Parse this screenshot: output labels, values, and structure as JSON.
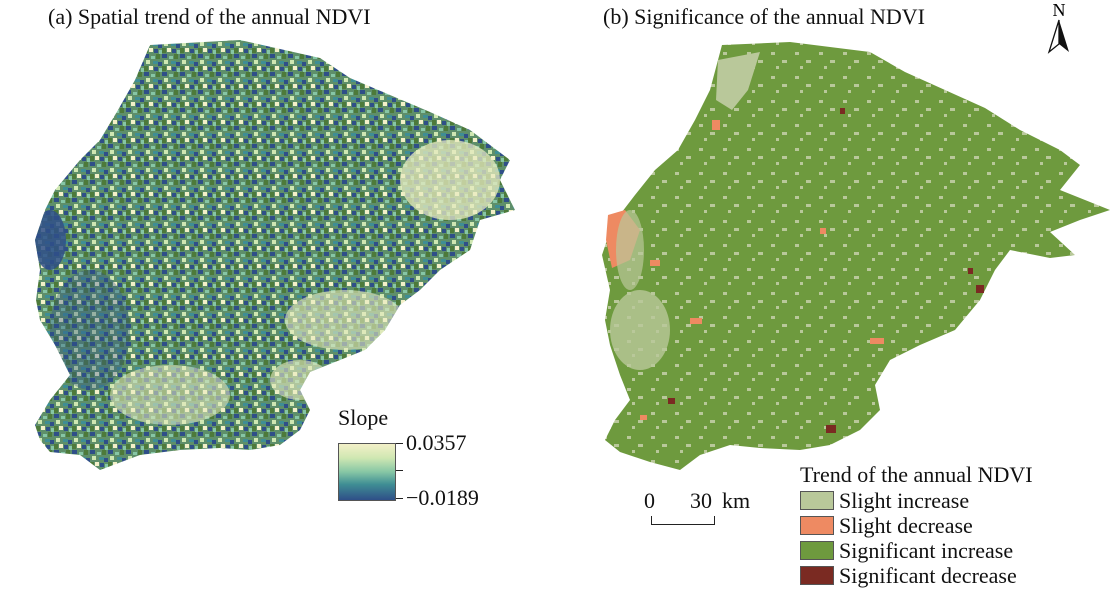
{
  "panel_a": {
    "title": "(a) Spatial trend of the annual NDVI",
    "legend": {
      "title": "Slope",
      "max_label": "0.0357",
      "min_label": "−0.0189"
    },
    "colors": [
      "#2f4f88",
      "#3f8e94",
      "#86c6a5",
      "#cfe7b2",
      "#f3f0c8",
      "#4d7a3a"
    ]
  },
  "panel_b": {
    "title": "(b) Significance of the annual NDVI",
    "legend": {
      "title": "Trend of the annual NDVI",
      "items": [
        {
          "label": "Slight increase",
          "color": "#b9c89a"
        },
        {
          "label": "Slight decrease",
          "color": "#ee8a62"
        },
        {
          "label": "Significant increase",
          "color": "#6e9a3e"
        },
        {
          "label": "Significant decrease",
          "color": "#7a2a22"
        }
      ]
    },
    "scalebar": {
      "start": "0",
      "end": "30",
      "unit": "km"
    },
    "north_label": "N"
  }
}
